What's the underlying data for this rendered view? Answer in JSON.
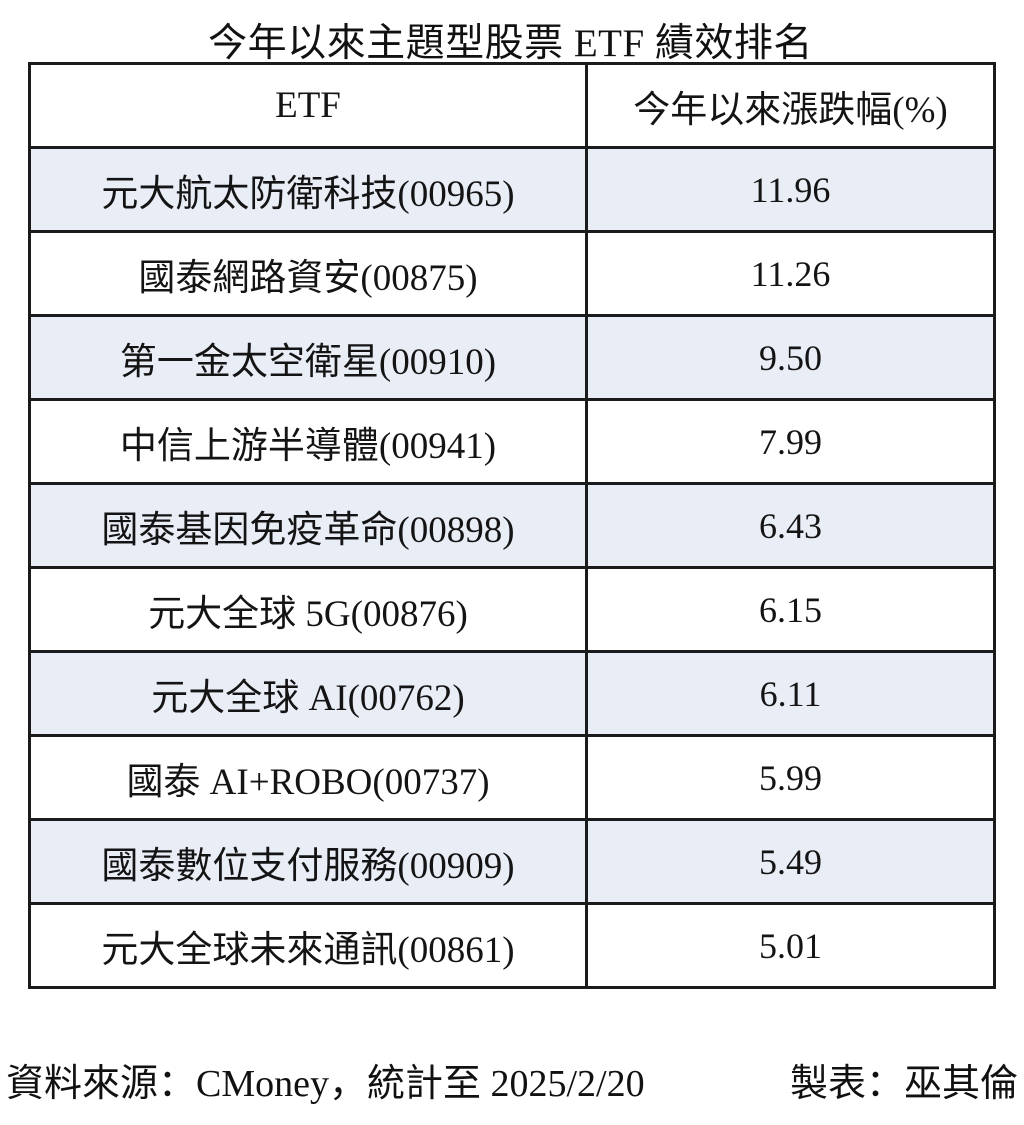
{
  "title": "今年以來主題型股票 ETF 績效排名",
  "table": {
    "columns": [
      "ETF",
      "今年以來漲跌幅(%)"
    ],
    "rows": [
      {
        "etf": "元大航太防衛科技(00965)",
        "ytd": "11.96"
      },
      {
        "etf": "國泰網路資安(00875)",
        "ytd": "11.26"
      },
      {
        "etf": "第一金太空衛星(00910)",
        "ytd": "9.50"
      },
      {
        "etf": "中信上游半導體(00941)",
        "ytd": "7.99"
      },
      {
        "etf": "國泰基因免疫革命(00898)",
        "ytd": "6.43"
      },
      {
        "etf": "元大全球 5G(00876)",
        "ytd": "6.15"
      },
      {
        "etf": "元大全球 AI(00762)",
        "ytd": "6.11"
      },
      {
        "etf": "國泰 AI+ROBO(00737)",
        "ytd": "5.99"
      },
      {
        "etf": "國泰數位支付服務(00909)",
        "ytd": "5.49"
      },
      {
        "etf": "元大全球未來通訊(00861)",
        "ytd": "5.01"
      }
    ]
  },
  "footer": {
    "source": "資料來源：CMoney，統計至 2025/2/20",
    "credit": "製表：巫其倫"
  },
  "colors": {
    "row_shade": "#e9edf6",
    "border": "#1b1b1b",
    "text": "#141414"
  },
  "chart_data": {
    "type": "table",
    "title": "今年以來主題型股票 ETF 績效排名",
    "columns": [
      "ETF",
      "今年以來漲跌幅(%)"
    ],
    "rows": [
      [
        "元大航太防衛科技(00965)",
        11.96
      ],
      [
        "國泰網路資安(00875)",
        11.26
      ],
      [
        "第一金太空衛星(00910)",
        9.5
      ],
      [
        "中信上游半導體(00941)",
        7.99
      ],
      [
        "國泰基因免疫革命(00898)",
        6.43
      ],
      [
        "元大全球 5G(00876)",
        6.15
      ],
      [
        "元大全球 AI(00762)",
        6.11
      ],
      [
        "國泰 AI+ROBO(00737)",
        5.99
      ],
      [
        "國泰數位支付服務(00909)",
        5.49
      ],
      [
        "元大全球未來通訊(00861)",
        5.01
      ]
    ],
    "source_note": "資料來源：CMoney，統計至 2025/2/20",
    "credit_note": "製表：巫其倫",
    "layout_hints": {
      "shaded_row_indices": [
        0,
        2,
        4,
        6,
        8
      ],
      "shade_color": "#e9edf6",
      "grid": "black solid borders, all cells"
    }
  }
}
